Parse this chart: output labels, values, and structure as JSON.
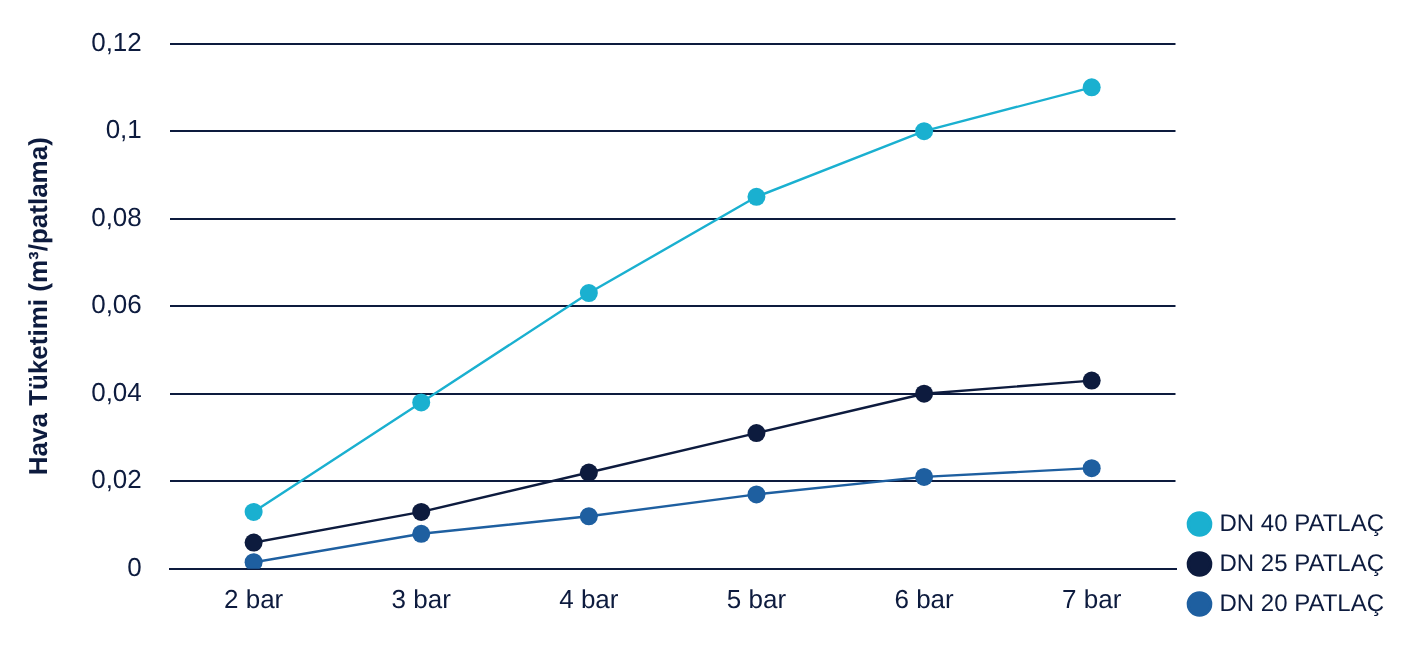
{
  "chart_data": {
    "type": "line",
    "ylabel": "Hava Tüketimi (m³/patlama)",
    "categories": [
      "2 bar",
      "3 bar",
      "4 bar",
      "5 bar",
      "6 bar",
      "7 bar"
    ],
    "series": [
      {
        "name": "DN 40 PATLAÇ",
        "color": "#1ab0d0",
        "values": [
          0.013,
          0.038,
          0.063,
          0.085,
          0.1,
          0.11
        ]
      },
      {
        "name": "DN 25 PATLAÇ",
        "color": "#0d1b3e",
        "values": [
          0.006,
          0.013,
          0.022,
          0.031,
          0.04,
          0.043
        ]
      },
      {
        "name": "DN 20 PATLAÇ",
        "color": "#1e5fa0",
        "values": [
          0.0015,
          0.008,
          0.012,
          0.017,
          0.021,
          0.023
        ]
      }
    ],
    "ylim": [
      0,
      0.12
    ],
    "yticks": [
      {
        "value": 0,
        "label": "0"
      },
      {
        "value": 0.02,
        "label": "0,02"
      },
      {
        "value": 0.04,
        "label": "0,04"
      },
      {
        "value": 0.06,
        "label": "0,06"
      },
      {
        "value": 0.08,
        "label": "0,08"
      },
      {
        "value": 0.1,
        "label": "0,1"
      },
      {
        "value": 0.12,
        "label": "0,12"
      }
    ],
    "grid": "y",
    "legend": "bottom right",
    "marker": "circle",
    "line_style": "solid"
  }
}
